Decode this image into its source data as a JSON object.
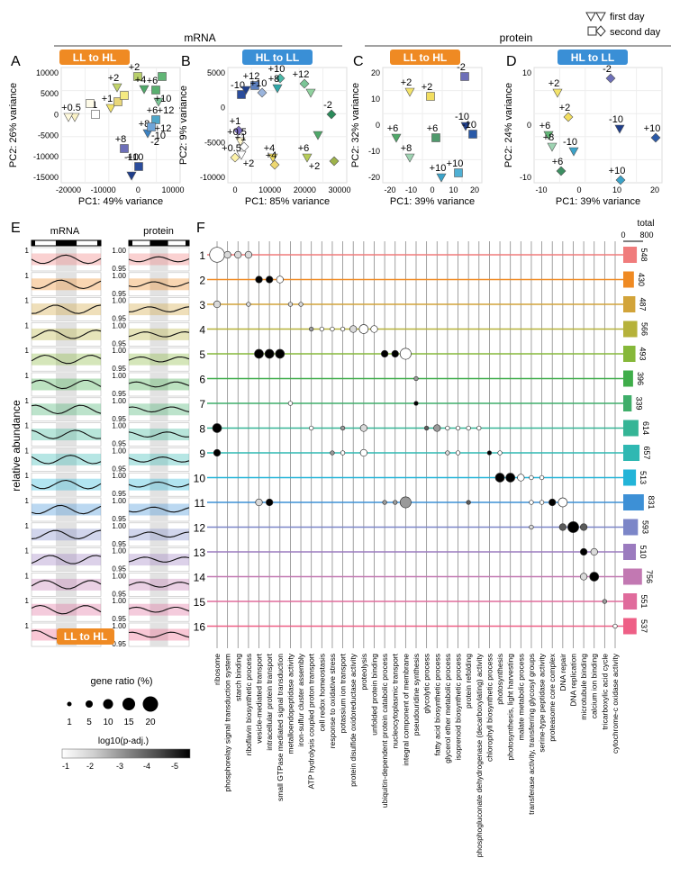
{
  "legend_top": {
    "first_day": "first day",
    "second_day": "second day"
  },
  "headers": {
    "mrna": "mRNA",
    "protein": "protein"
  },
  "panels": [
    {
      "letter": "A",
      "tag": "LL to HL",
      "tag_color": "#ef8a23",
      "xlabel": "PC1: 49% variance",
      "ylabel": "PC2: 26% variance",
      "xticks": [
        "-20000",
        "-10000",
        "0",
        "10000"
      ],
      "yticks": [
        "10000",
        "5000",
        "0",
        "-5000",
        "-10000",
        "-15000"
      ],
      "labels": [
        "+0.5",
        "+1",
        "+1",
        "+2",
        "+2",
        "+4",
        "+6",
        "+6",
        "+8",
        "+8",
        "+10",
        "+10",
        "+12",
        "+12",
        "-2",
        "-10",
        "-10"
      ]
    },
    {
      "letter": "B",
      "tag": "HL to LL",
      "tag_color": "#3a8fd6",
      "xlabel": "PC1: 85% variance",
      "ylabel": "PC2: 9% variance",
      "xticks": [
        "0",
        "10000",
        "20000",
        "30000"
      ],
      "yticks": [
        "5000",
        "0",
        "-5000",
        "-10000"
      ],
      "labels": [
        "-10",
        "+12",
        "+10",
        "+10",
        "+8",
        "+12",
        "-2",
        "+1",
        "+0.5",
        "+1",
        "+0.5",
        "+6",
        "+4",
        "+4",
        "+2",
        "+2"
      ]
    },
    {
      "letter": "C",
      "tag": "LL to HL",
      "tag_color": "#ef8a23",
      "xlabel": "PC1: 39% variance",
      "ylabel": "PC2: 32% variance",
      "xticks": [
        "-20",
        "-10",
        "0",
        "10",
        "20"
      ],
      "yticks": [
        "20",
        "10",
        "0",
        "-10",
        "-20"
      ],
      "labels": [
        "+2",
        "+2",
        "-2",
        "+6",
        "+6",
        "+8",
        "-10",
        "-10",
        "+10",
        "+10"
      ]
    },
    {
      "letter": "D",
      "tag": "HL to LL",
      "tag_color": "#3a8fd6",
      "xlabel": "PC1: 39% variance",
      "ylabel": "PC2: 24% variance",
      "xticks": [
        "-10",
        "0",
        "10",
        "20"
      ],
      "yticks": [
        "10",
        "0",
        "-10"
      ],
      "labels": [
        "+2",
        "-2",
        "+2",
        "+6",
        "+8",
        "-10",
        "-10",
        "+10",
        "+6",
        "+10"
      ]
    }
  ],
  "panel_E": {
    "letter": "E",
    "mrna": "mRNA",
    "protein": "protein",
    "ylabel": "relative abundance",
    "tick_top": "1",
    "tick_bottom": "0.95",
    "prot_top": "1.00",
    "prot_bottom": "0.95"
  },
  "panel_F": {
    "letter": "F",
    "total_label": "total",
    "total_ticks": [
      "0",
      "800"
    ]
  },
  "clusters": [
    {
      "id": "1",
      "color": "#f07c7c",
      "total": "548"
    },
    {
      "id": "2",
      "color": "#ef8a23",
      "total": "430"
    },
    {
      "id": "3",
      "color": "#d2a43a",
      "total": "487"
    },
    {
      "id": "4",
      "color": "#b6b23a",
      "total": "566"
    },
    {
      "id": "5",
      "color": "#86b83a",
      "total": "493"
    },
    {
      "id": "6",
      "color": "#3fad4a",
      "total": "396"
    },
    {
      "id": "7",
      "color": "#3fae6a",
      "total": "339"
    },
    {
      "id": "8",
      "color": "#35b596",
      "total": "614"
    },
    {
      "id": "9",
      "color": "#2fb8b2",
      "total": "657"
    },
    {
      "id": "10",
      "color": "#22b4d8",
      "total": "513"
    },
    {
      "id": "11",
      "color": "#3d90d6",
      "total": "831"
    },
    {
      "id": "12",
      "color": "#7c86c8",
      "total": "593"
    },
    {
      "id": "13",
      "color": "#9b7bbf",
      "total": "510"
    },
    {
      "id": "14",
      "color": "#c278b2",
      "total": "756"
    },
    {
      "id": "15",
      "color": "#e06b9c",
      "total": "551"
    },
    {
      "id": "16",
      "color": "#ee5f86",
      "total": "537"
    }
  ],
  "go_terms": [
    "ribosome",
    "phosphorelay signal transduction system",
    "starch binding",
    "riboflavin biosynthetic process",
    "vesicle-mediated transport",
    "intracellular protein transport",
    "small GTPase mediated signal transduction",
    "metalloendopeptidase activity",
    "iron-sulfur cluster assembly",
    "ATP hydrolysis coupled proton transport",
    "cell redox homeostasis",
    "response to oxidative stress",
    "potassium ion transport",
    "protein disulfide oxidoreductase activity",
    "proteolysis",
    "unfolded protein binding",
    "ubiquitin-dependent protein catabolic process",
    "nucleocytoplasmic transport",
    "integral component of membrane",
    "pseudouridine synthesis",
    "glycolytic process",
    "fatty acid biosynthetic process",
    "glycerol ether metabolic process",
    "isoprenoid biosynthetic process",
    "protein refolding",
    "phosphogluconate dehydrogenase (decarboxylating) activity",
    "chlorophyll biosynthetic process",
    "photosynthesis",
    "photosynthesis, light harvesting",
    "malate metabolic process",
    "transferase activity, transferring glycosyl groups",
    "serine-type peptidase activity",
    "proteasome core complex",
    "DNA repair",
    "DNA replication",
    "microtubule binding",
    "calcium ion binding",
    "tricarboxylic acid cycle",
    "cytochrome-c oxidase activity"
  ],
  "dots": [
    [
      1,
      0,
      6,
      1
    ],
    [
      1,
      1,
      2,
      2
    ],
    [
      1,
      2,
      2,
      2
    ],
    [
      1,
      3,
      2,
      2
    ],
    [
      2,
      4,
      2,
      5
    ],
    [
      2,
      5,
      2,
      5
    ],
    [
      2,
      6,
      2,
      1
    ],
    [
      3,
      0,
      2,
      2
    ],
    [
      3,
      3,
      1,
      2
    ],
    [
      3,
      7,
      1,
      2
    ],
    [
      3,
      8,
      1,
      2
    ],
    [
      4,
      9,
      1,
      3
    ],
    [
      4,
      10,
      1,
      1
    ],
    [
      4,
      11,
      1,
      1
    ],
    [
      4,
      12,
      1,
      1
    ],
    [
      4,
      13,
      2,
      2
    ],
    [
      4,
      14,
      3,
      1
    ],
    [
      4,
      15,
      2,
      1
    ],
    [
      5,
      4,
      3,
      5
    ],
    [
      5,
      5,
      3,
      5
    ],
    [
      5,
      6,
      3,
      5
    ],
    [
      5,
      16,
      2,
      5
    ],
    [
      5,
      17,
      2,
      5
    ],
    [
      5,
      18,
      4,
      1
    ],
    [
      6,
      19,
      1,
      3
    ],
    [
      7,
      7,
      1,
      1
    ],
    [
      7,
      19,
      1,
      5
    ],
    [
      8,
      0,
      3,
      5
    ],
    [
      8,
      9,
      1,
      1
    ],
    [
      8,
      12,
      1,
      3
    ],
    [
      8,
      14,
      2,
      2
    ],
    [
      8,
      20,
      1,
      4
    ],
    [
      8,
      21,
      2,
      3
    ],
    [
      8,
      22,
      1,
      1
    ],
    [
      8,
      23,
      1,
      1
    ],
    [
      8,
      24,
      1,
      1
    ],
    [
      8,
      25,
      1,
      1
    ],
    [
      9,
      0,
      2,
      5
    ],
    [
      9,
      11,
      1,
      3
    ],
    [
      9,
      12,
      1,
      1
    ],
    [
      9,
      14,
      2,
      1
    ],
    [
      9,
      22,
      1,
      2
    ],
    [
      9,
      23,
      1,
      1
    ],
    [
      9,
      26,
      1,
      5
    ],
    [
      9,
      27,
      1,
      1
    ],
    [
      10,
      27,
      3,
      5
    ],
    [
      10,
      28,
      3,
      5
    ],
    [
      10,
      29,
      2,
      1
    ],
    [
      10,
      30,
      1,
      1
    ],
    [
      10,
      31,
      1,
      1
    ],
    [
      11,
      4,
      2,
      2
    ],
    [
      11,
      5,
      2,
      5
    ],
    [
      11,
      16,
      1,
      3
    ],
    [
      11,
      17,
      1,
      3
    ],
    [
      11,
      18,
      4,
      3
    ],
    [
      11,
      24,
      1,
      4
    ],
    [
      11,
      30,
      1,
      1
    ],
    [
      11,
      31,
      1,
      1
    ],
    [
      11,
      32,
      2,
      5
    ],
    [
      11,
      33,
      3,
      1
    ],
    [
      12,
      30,
      1,
      2
    ],
    [
      12,
      33,
      2,
      4
    ],
    [
      12,
      34,
      4,
      5
    ],
    [
      12,
      35,
      2,
      4
    ],
    [
      13,
      35,
      2,
      5
    ],
    [
      13,
      36,
      2,
      2
    ],
    [
      14,
      35,
      2,
      2
    ],
    [
      14,
      36,
      3,
      5
    ],
    [
      15,
      37,
      1,
      3
    ],
    [
      16,
      38,
      1,
      1
    ]
  ],
  "legend_F": {
    "tag": "LL to HL",
    "size_title": "gene ratio (%)",
    "size_values": [
      "1",
      "5",
      "10",
      "15",
      "20"
    ],
    "color_title": "log10(p-adj.)",
    "color_ticks": [
      "-1",
      "-2",
      "-3",
      "-4",
      "-5"
    ]
  }
}
